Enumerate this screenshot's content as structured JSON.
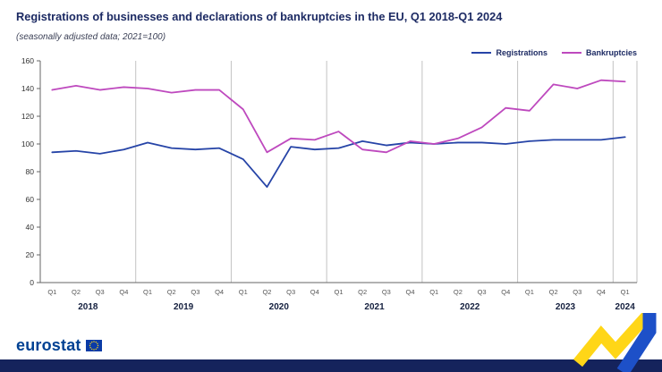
{
  "header": {
    "title": "Registrations of businesses and declarations of bankruptcies in the EU, Q1 2018-Q1 2024",
    "subtitle": "(seasonally adjusted data; 2021=100)"
  },
  "chart_data": {
    "type": "line",
    "quarters": [
      "Q1",
      "Q2",
      "Q3",
      "Q4",
      "Q1",
      "Q2",
      "Q3",
      "Q4",
      "Q1",
      "Q2",
      "Q3",
      "Q4",
      "Q1",
      "Q2",
      "Q3",
      "Q4",
      "Q1",
      "Q2",
      "Q3",
      "Q4",
      "Q1",
      "Q2",
      "Q3",
      "Q4",
      "Q1"
    ],
    "year_groups": [
      {
        "label": "2018",
        "count": 4
      },
      {
        "label": "2019",
        "count": 4
      },
      {
        "label": "2020",
        "count": 4
      },
      {
        "label": "2021",
        "count": 4
      },
      {
        "label": "2022",
        "count": 4
      },
      {
        "label": "2023",
        "count": 4
      },
      {
        "label": "2024",
        "count": 1
      }
    ],
    "ylim": [
      0,
      160
    ],
    "ytick_step": 20,
    "grid": "vertical-year-separators-only",
    "legend_position": "top-right",
    "series": [
      {
        "name": "Registrations",
        "color": "#2644A7",
        "values": [
          94,
          95,
          93,
          96,
          101,
          97,
          96,
          97,
          89,
          69,
          98,
          96,
          97,
          102,
          99,
          101,
          100,
          101,
          101,
          100,
          102,
          103,
          103,
          103,
          105
        ]
      },
      {
        "name": "Bankruptcies",
        "color": "#BE49BE",
        "values": [
          139,
          142,
          139,
          141,
          140,
          137,
          139,
          139,
          125,
          94,
          104,
          103,
          109,
          96,
          94,
          102,
          100,
          104,
          112,
          126,
          124,
          143,
          140,
          146,
          145
        ]
      }
    ]
  },
  "footer": {
    "brand": "eurostat",
    "brand_color": "#004193",
    "bar_color": "#15235C",
    "ribbon_yellow": "#FFD617",
    "ribbon_blue": "#1D50C8"
  }
}
